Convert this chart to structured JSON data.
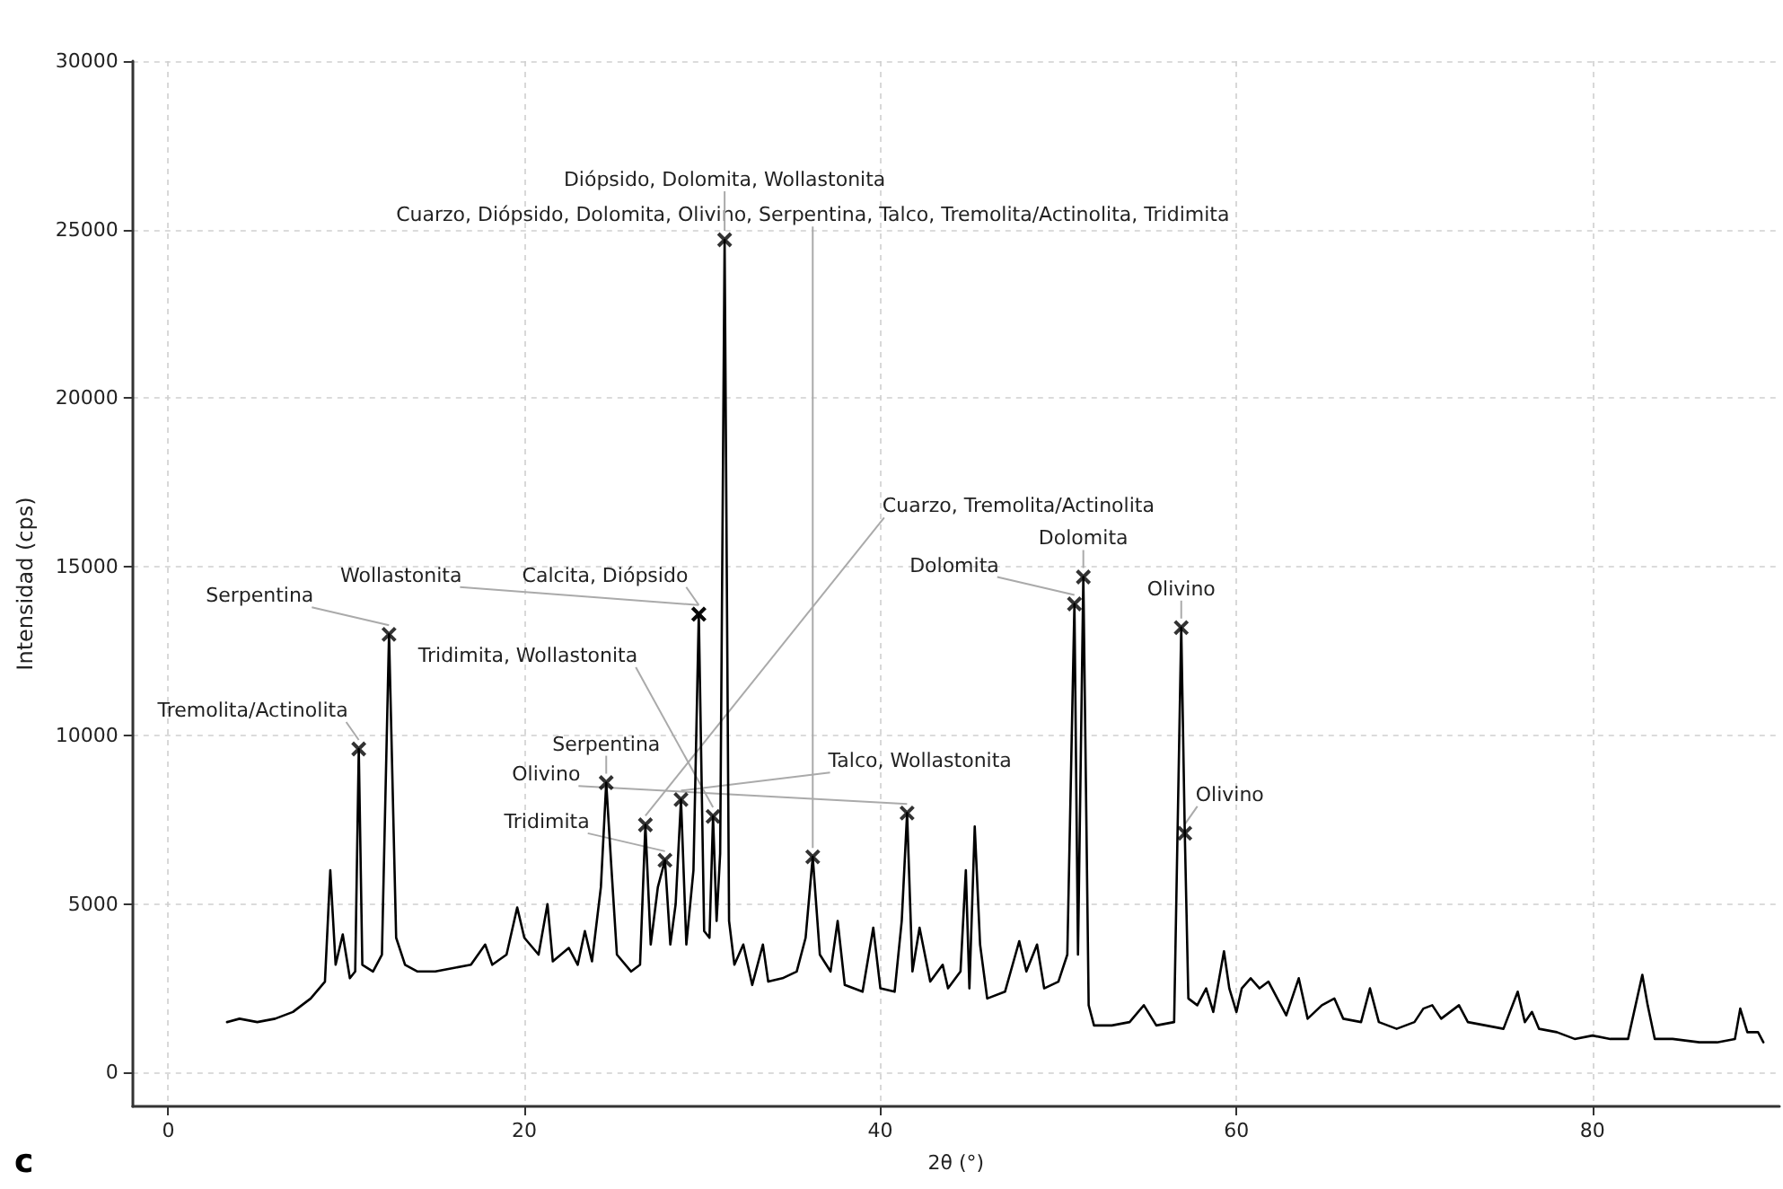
{
  "chart_data": {
    "type": "line",
    "xlabel": "2θ (°)",
    "ylabel": "Intensidad (cps)",
    "xlim": [
      -2,
      90.5
    ],
    "xticks": [
      0,
      20,
      40,
      60,
      80
    ],
    "ylim": [
      -1000,
      30000
    ],
    "yticks": [
      0,
      5000,
      10000,
      15000,
      20000,
      25000,
      30000
    ],
    "grid": true,
    "marker": "none",
    "line_style": "solid",
    "series": [
      {
        "color": "#000000",
        "x": [
          3.3,
          4,
          5,
          6,
          7,
          8,
          8.8,
          9.1,
          9.4,
          9.8,
          10.2,
          10.5,
          10.7,
          10.9,
          11.5,
          12.0,
          12.4,
          12.8,
          13.3,
          14,
          15,
          16,
          17,
          17.8,
          18.2,
          19,
          19.6,
          20,
          20.8,
          21.3,
          21.6,
          22.5,
          23.0,
          23.4,
          23.8,
          24.3,
          24.6,
          24.9,
          25.2,
          26,
          26.5,
          26.8,
          27.1,
          27.5,
          27.9,
          28.2,
          28.5,
          28.8,
          29.1,
          29.5,
          29.8,
          30.1,
          30.4,
          30.6,
          30.8,
          31.0,
          31.25,
          31.5,
          31.8,
          32.3,
          32.8,
          33.4,
          33.7,
          34.5,
          35.3,
          35.8,
          36.2,
          36.6,
          37.2,
          37.6,
          38,
          39,
          39.6,
          40,
          40.8,
          41.2,
          41.5,
          41.8,
          42.2,
          42.8,
          43.5,
          43.8,
          44.5,
          44.8,
          45.0,
          45.3,
          45.6,
          46,
          47,
          47.8,
          48.2,
          48.8,
          49.2,
          50,
          50.5,
          50.9,
          51.1,
          51.4,
          51.7,
          52,
          53,
          54,
          54.8,
          55.5,
          56.5,
          56.9,
          57.1,
          57.3,
          57.8,
          58.3,
          58.7,
          59.3,
          59.6,
          60,
          60.3,
          60.8,
          61.3,
          61.8,
          62.3,
          62.8,
          63.5,
          64,
          64.8,
          65.5,
          66,
          67,
          67.5,
          68,
          69,
          70,
          70.5,
          71,
          71.5,
          72.5,
          73,
          74,
          75,
          75.8,
          76.2,
          76.6,
          77,
          78,
          79,
          80,
          81,
          82,
          82.8,
          83.1,
          83.5,
          84.5,
          86,
          87,
          88,
          88.3,
          88.7,
          89.3,
          89.6
        ],
        "values": [
          1500,
          1600,
          1500,
          1600,
          1800,
          2200,
          2700,
          6000,
          3200,
          4100,
          2800,
          3000,
          9600,
          3200,
          3000,
          3500,
          13000,
          4000,
          3200,
          3000,
          3000,
          3100,
          3200,
          3800,
          3200,
          3500,
          4900,
          4000,
          3500,
          5000,
          3300,
          3700,
          3200,
          4200,
          3300,
          5500,
          8600,
          6000,
          3500,
          3000,
          3200,
          7350,
          3800,
          5500,
          6300,
          3800,
          5000,
          8100,
          3800,
          6000,
          13600,
          4200,
          4000,
          7600,
          4500,
          6500,
          24700,
          4500,
          3200,
          3800,
          2600,
          3800,
          2700,
          2800,
          3000,
          4000,
          6400,
          3500,
          3000,
          4500,
          2600,
          2400,
          4300,
          2500,
          2400,
          4500,
          7700,
          3000,
          4300,
          2700,
          3200,
          2500,
          3000,
          6000,
          2500,
          7300,
          3800,
          2200,
          2400,
          3900,
          3000,
          3800,
          2500,
          2700,
          3500,
          13900,
          3500,
          14700,
          2000,
          1400,
          1400,
          1500,
          2000,
          1400,
          1500,
          13200,
          7100,
          2200,
          2000,
          2500,
          1800,
          3600,
          2500,
          1800,
          2500,
          2800,
          2500,
          2700,
          2200,
          1700,
          2800,
          1600,
          2000,
          2200,
          1600,
          1500,
          2500,
          1500,
          1300,
          1500,
          1900,
          2000,
          1600,
          2000,
          1500,
          1400,
          1300,
          2400,
          1500,
          1800,
          1300,
          1200,
          1000,
          1100,
          1000,
          1000,
          2900,
          2000,
          1000,
          1000,
          900,
          900,
          1000,
          1900,
          1200,
          1200,
          900
        ]
      }
    ],
    "annotations": [
      {
        "text": "Tremolita/Actinolita",
        "x": 10.7,
        "y": 9600
      },
      {
        "text": "Serpentina",
        "x": 12.4,
        "y": 13000
      },
      {
        "text": "Serpentina",
        "x": 24.6,
        "y": 8600
      },
      {
        "text": "Cuarzo, Tremolita/Actinolita",
        "x": 26.8,
        "y": 7350
      },
      {
        "text": "Tridimita",
        "x": 27.9,
        "y": 6300
      },
      {
        "text": "Talco, Wollastonita",
        "x": 28.8,
        "y": 8100
      },
      {
        "text": "Calcita, Diópsido",
        "x": 29.8,
        "y": 13600
      },
      {
        "text": "Wollastonita",
        "x": 29.8,
        "y": 13600
      },
      {
        "text": "Tridimita, Wollastonita",
        "x": 30.6,
        "y": 7600
      },
      {
        "text": "Diópsido, Dolomita, Wollastonita",
        "x": 31.25,
        "y": 24700
      },
      {
        "text": "Cuarzo, Diópsido, Dolomita, Olivino, Serpentina, Talco, Tremolita/Actinolita, Tridimita",
        "x": 36.2,
        "y": 6400
      },
      {
        "text": "Olivino",
        "x": 41.5,
        "y": 7700
      },
      {
        "text": "Dolomita",
        "x": 50.9,
        "y": 13900
      },
      {
        "text": "Dolomita",
        "x": 51.4,
        "y": 14700
      },
      {
        "text": "Olivino",
        "x": 56.9,
        "y": 13200
      },
      {
        "text": "Olivino",
        "x": 57.1,
        "y": 7100
      },
      "c"
    ]
  }
}
